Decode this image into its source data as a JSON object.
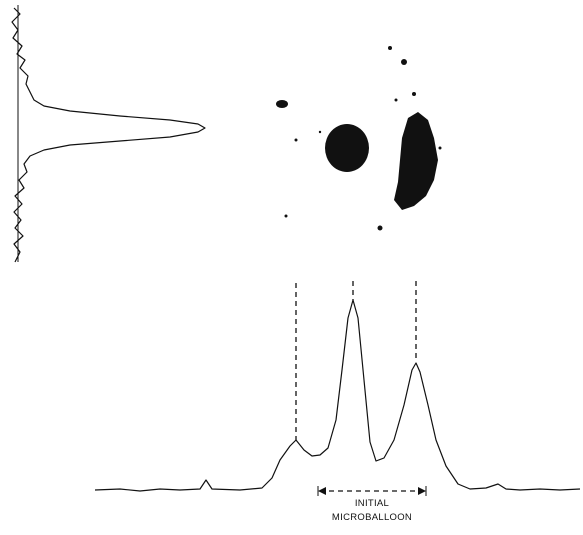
{
  "figure": {
    "label": [
      "INITIAL",
      "MICROBALLOON"
    ]
  }
}
